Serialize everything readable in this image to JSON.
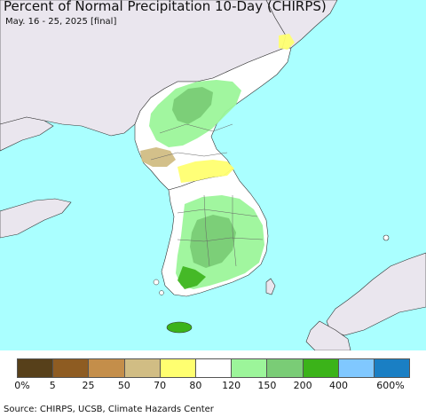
{
  "header": {
    "title": "Percent of Normal Precipitation 10-Day (CHIRPS)",
    "subtitle": "May. 16 - 25, 2025 [final]"
  },
  "map": {
    "sea_color": "#aaffff",
    "land_outside_color": "#eae6ee",
    "land_no_data_color": "#ffffff"
  },
  "legend": {
    "colors": [
      "#57401a",
      "#8e5c22",
      "#c48e4a",
      "#d1bd84",
      "#ffff70",
      "#ffffff",
      "#9cf59a",
      "#7acc76",
      "#3bb319",
      "#80c8ff",
      "#1a7fc4"
    ],
    "labels": [
      "0%",
      "5",
      "25",
      "50",
      "70",
      "80",
      "120",
      "150",
      "200",
      "400",
      "600%"
    ]
  },
  "footer": {
    "source": "Source: CHIRPS, UCSB, Climate Hazards Center"
  }
}
